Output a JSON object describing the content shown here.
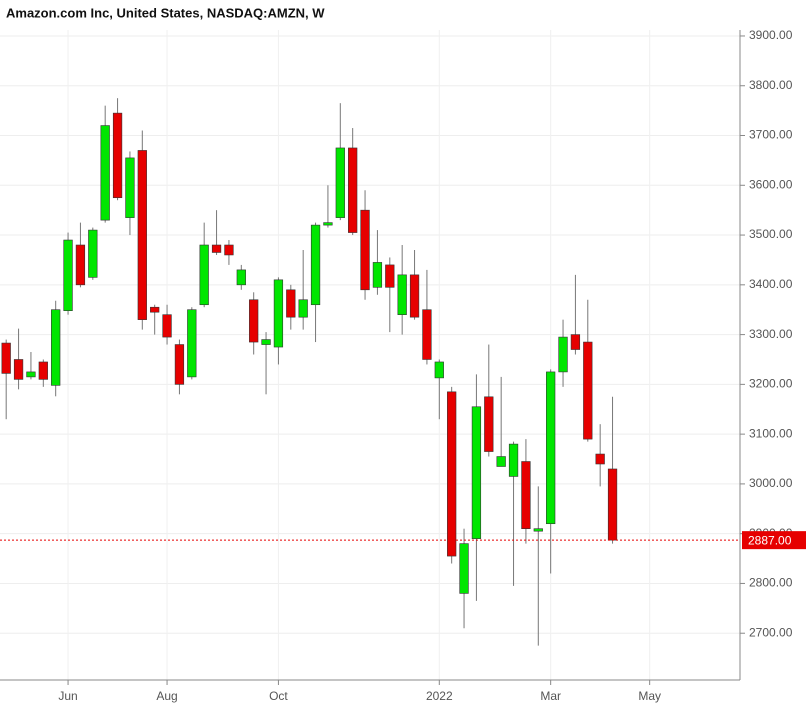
{
  "chart_data": {
    "type": "candlestick",
    "title": "Amazon.com Inc, United States, NASDAQ:AMZN, W",
    "up_color": "#00e600",
    "down_color": "#e60000",
    "grid": true,
    "open": [
      3283,
      3250,
      3215,
      3245,
      3198,
      3348,
      3480,
      3415,
      3530,
      3745,
      3535,
      3670,
      3355,
      3340,
      3280,
      3215,
      3360,
      3480,
      3480,
      3400,
      3370,
      3280,
      3275,
      3390,
      3335,
      3360,
      3520,
      3535,
      3675,
      3550,
      3395,
      3440,
      3340,
      3420,
      3350,
      3213,
      3185,
      2780,
      2890,
      3175,
      3035,
      3015,
      3045,
      2905,
      2920,
      3225,
      3300,
      3285,
      3060,
      3030
    ],
    "high": [
      3290,
      3312,
      3265,
      3250,
      3368,
      3505,
      3525,
      3515,
      3760,
      3775,
      3668,
      3710,
      3360,
      3360,
      3290,
      3355,
      3525,
      3550,
      3490,
      3440,
      3385,
      3305,
      3415,
      3400,
      3470,
      3525,
      3600,
      3765,
      3715,
      3590,
      3510,
      3455,
      3480,
      3470,
      3430,
      3250,
      3195,
      2910,
      3220,
      3280,
      3215,
      3085,
      3090,
      2995,
      3230,
      3330,
      3420,
      3370,
      3120,
      3175
    ],
    "low": [
      3130,
      3190,
      3210,
      3195,
      3176,
      3340,
      3395,
      3410,
      3525,
      3570,
      3500,
      3310,
      3300,
      3280,
      3180,
      3210,
      3355,
      3460,
      3440,
      3390,
      3260,
      3180,
      3240,
      3310,
      3310,
      3285,
      3515,
      3530,
      3500,
      3370,
      3380,
      3305,
      3300,
      3330,
      3240,
      3130,
      2840,
      2710,
      2765,
      3055,
      3035,
      2795,
      2880,
      2675,
      2820,
      3195,
      3260,
      3085,
      2995,
      2880
    ],
    "close": [
      3222,
      3210,
      3225,
      3210,
      3350,
      3490,
      3400,
      3510,
      3720,
      3575,
      3655,
      3330,
      3345,
      3295,
      3200,
      3350,
      3480,
      3465,
      3460,
      3430,
      3285,
      3290,
      3410,
      3335,
      3370,
      3520,
      3525,
      3675,
      3505,
      3390,
      3445,
      3395,
      3420,
      3335,
      3250,
      3245,
      2855,
      2880,
      3155,
      3065,
      3055,
      3080,
      2910,
      2910,
      3225,
      3295,
      3270,
      3090,
      3040,
      2887
    ],
    "xlim": [
      -0.5,
      59.3
    ],
    "xticks": [
      {
        "value": 5,
        "label": "Jun"
      },
      {
        "value": 13,
        "label": "Aug"
      },
      {
        "value": 22,
        "label": "Oct"
      },
      {
        "value": 35,
        "label": "2022"
      },
      {
        "value": 44,
        "label": "Mar"
      },
      {
        "value": 52,
        "label": "May"
      }
    ],
    "ylim": [
      2606,
      3912
    ],
    "yticks": [
      {
        "value": 2700,
        "label": "2700.00"
      },
      {
        "value": 2800,
        "label": "2800.00"
      },
      {
        "value": 2900,
        "label": "2900.00"
      },
      {
        "value": 3000,
        "label": "3000.00"
      },
      {
        "value": 3100,
        "label": "3100.00"
      },
      {
        "value": 3200,
        "label": "3200.00"
      },
      {
        "value": 3300,
        "label": "3300.00"
      },
      {
        "value": 3400,
        "label": "3400.00"
      },
      {
        "value": 3500,
        "label": "3500.00"
      },
      {
        "value": 3600,
        "label": "3600.00"
      },
      {
        "value": 3700,
        "label": "3700.00"
      },
      {
        "value": 3800,
        "label": "3800.00"
      },
      {
        "value": 3900,
        "label": "3900.00"
      }
    ],
    "last_price": {
      "value": 2887,
      "label": "2887.00",
      "color": "#e60000"
    }
  }
}
